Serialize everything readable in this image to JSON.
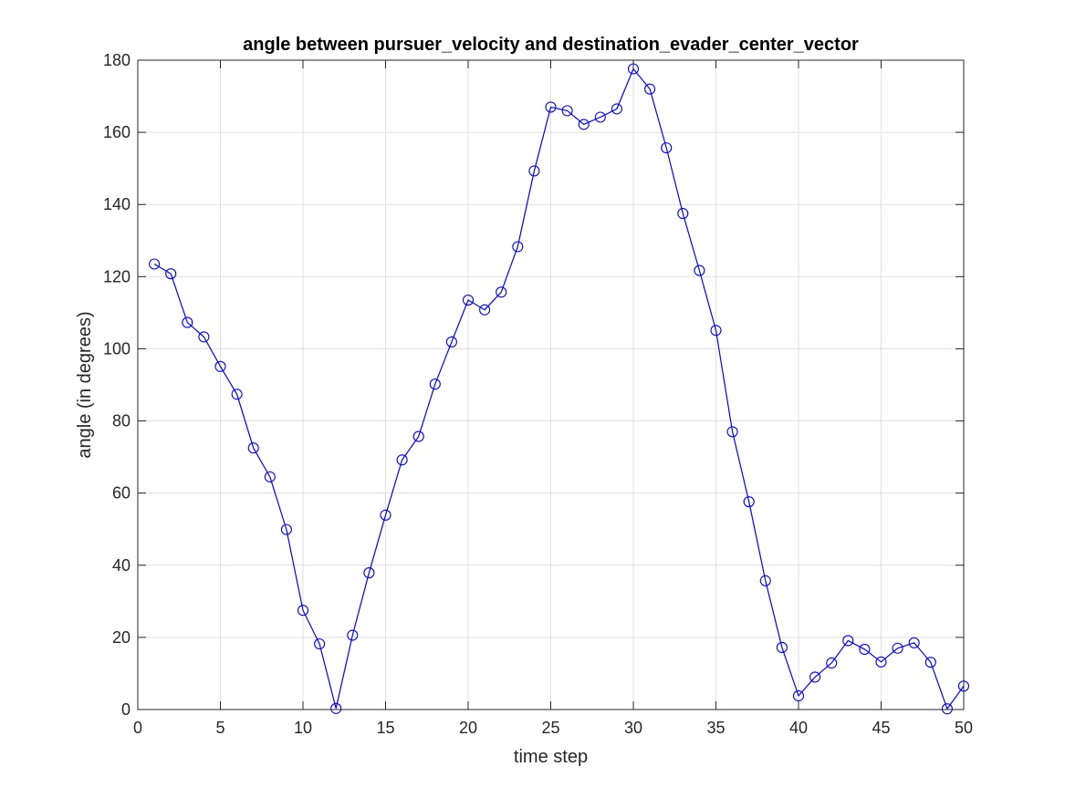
{
  "chart_data": {
    "type": "line",
    "title": "angle between pursuer_velocity and destination_evader_center_vector",
    "xlabel": "time step",
    "ylabel": "angle (in degrees)",
    "xlim": [
      0,
      50
    ],
    "ylim": [
      0,
      180
    ],
    "xticks": [
      "0",
      "5",
      "10",
      "15",
      "20",
      "25",
      "30",
      "35",
      "40",
      "45",
      "50"
    ],
    "yticks": [
      "0",
      "20",
      "40",
      "60",
      "80",
      "100",
      "120",
      "140",
      "160",
      "180"
    ],
    "grid": true,
    "marker": "circle",
    "series": [
      {
        "color": "#0000ff",
        "x": [
          1,
          2,
          3,
          4,
          5,
          6,
          7,
          8,
          9,
          10,
          11,
          12,
          13,
          14,
          15,
          16,
          17,
          18,
          19,
          20,
          21,
          22,
          23,
          24,
          25,
          26,
          27,
          28,
          29,
          30,
          31,
          32,
          33,
          34,
          35,
          36,
          37,
          38,
          39,
          40,
          41,
          42,
          43,
          44,
          45,
          46,
          47,
          48,
          49,
          50
        ],
        "values": [
          123.5,
          120.8,
          107.3,
          103.3,
          95.1,
          87.4,
          72.5,
          64.5,
          49.9,
          27.5,
          18.2,
          0.3,
          20.6,
          37.9,
          53.9,
          69.2,
          75.7,
          90.2,
          101.9,
          113.5,
          110.8,
          115.7,
          128.3,
          149.3,
          167.0,
          166.0,
          162.2,
          164.2,
          166.5,
          177.6,
          172.0,
          155.7,
          137.5,
          121.7,
          105.1,
          77.0,
          57.6,
          35.7,
          17.2,
          3.8,
          9.0,
          12.9,
          19.1,
          16.7,
          13.2,
          17.0,
          18.5,
          13.1,
          0.2,
          6.5
        ]
      }
    ]
  }
}
